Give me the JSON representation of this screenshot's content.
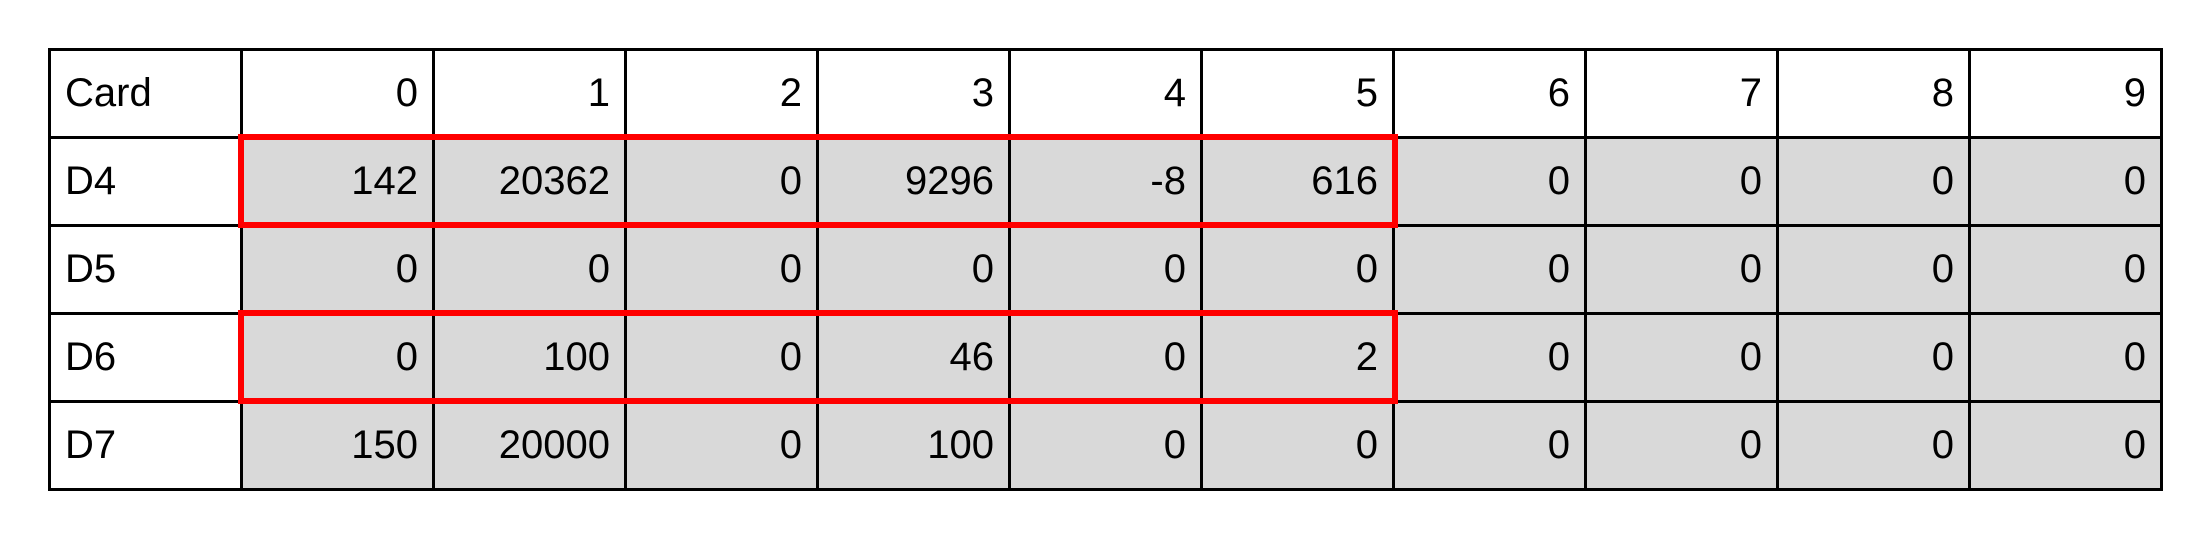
{
  "table": {
    "header": [
      "Card",
      "0",
      "1",
      "2",
      "3",
      "4",
      "5",
      "6",
      "7",
      "8",
      "9"
    ],
    "rows": [
      {
        "label": "D4",
        "values": [
          "142",
          "20362",
          "0",
          "9296",
          "-8",
          "616",
          "0",
          "0",
          "0",
          "0"
        ]
      },
      {
        "label": "D5",
        "values": [
          "0",
          "0",
          "0",
          "0",
          "0",
          "0",
          "0",
          "0",
          "0",
          "0"
        ]
      },
      {
        "label": "D6",
        "values": [
          "0",
          "100",
          "0",
          "46",
          "0",
          "2",
          "0",
          "0",
          "0",
          "0"
        ]
      },
      {
        "label": "D7",
        "values": [
          "150",
          "20000",
          "0",
          "100",
          "0",
          "0",
          "0",
          "0",
          "0",
          "0"
        ]
      }
    ]
  },
  "highlights": [
    {
      "row": "D4",
      "columns": [
        "0",
        "5"
      ],
      "color": "#ff0000"
    },
    {
      "row": "D6",
      "columns": [
        "0",
        "5"
      ],
      "color": "#ff0000"
    }
  ],
  "colors": {
    "cell_fill": "#d9d9d9",
    "border": "#000000",
    "highlight": "#ff0000"
  }
}
